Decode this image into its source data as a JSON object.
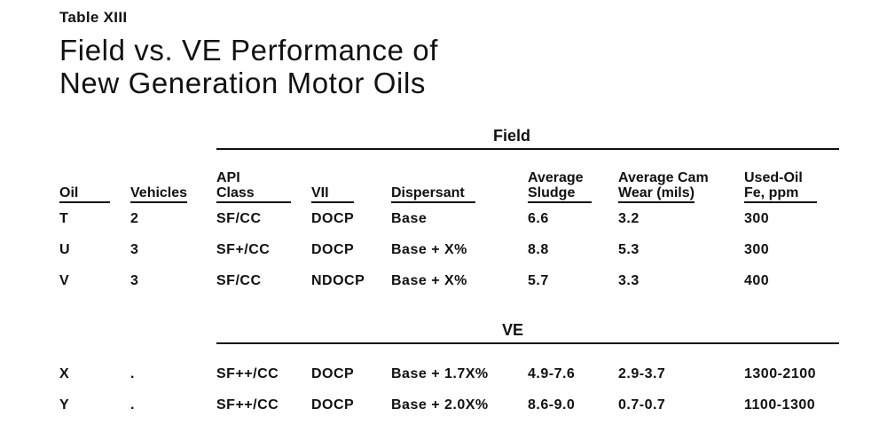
{
  "table_label": "Table XIII",
  "title_line1": "Field vs. VE Performance of",
  "title_line2": "New Generation Motor Oils",
  "groups": {
    "field": "Field",
    "ve": "VE"
  },
  "headers": {
    "oil": "Oil",
    "vehicles": "Vehicles",
    "api_line1": "API",
    "api_line2": "Class",
    "vii": "VII",
    "dispersant": "Dispersant",
    "sludge_line1": "Average",
    "sludge_line2": "Sludge",
    "cam_line1": "Average Cam",
    "cam_line2": "Wear (mils)",
    "fe_line1": "Used-Oil",
    "fe_line2": "Fe, ppm"
  },
  "field_rows": [
    {
      "oil": "T",
      "vehicles": "2",
      "api": "SF/CC",
      "vii": "DOCP",
      "dispersant": "Base",
      "sludge": "6.6",
      "cam_wear": "3.2",
      "fe": "300"
    },
    {
      "oil": "U",
      "vehicles": "3",
      "api": "SF+/CC",
      "vii": "DOCP",
      "dispersant": "Base + X%",
      "sludge": "8.8",
      "cam_wear": "5.3",
      "fe": "300"
    },
    {
      "oil": "V",
      "vehicles": "3",
      "api": "SF/CC",
      "vii": "NDOCP",
      "dispersant": "Base + X%",
      "sludge": "5.7",
      "cam_wear": "3.3",
      "fe": "400"
    }
  ],
  "ve_rows": [
    {
      "oil": "X",
      "vehicles": ".",
      "api": "SF++/CC",
      "vii": "DOCP",
      "dispersant": "Base + 1.7X%",
      "sludge": "4.9-7.6",
      "cam_wear": "2.9-3.7",
      "fe": "1300-2100"
    },
    {
      "oil": "Y",
      "vehicles": ".",
      "api": "SF++/CC",
      "vii": "DOCP",
      "dispersant": "Base + 2.0X%",
      "sludge": "8.6-9.0",
      "cam_wear": "0.7-0.7",
      "fe": "1100-1300"
    }
  ]
}
